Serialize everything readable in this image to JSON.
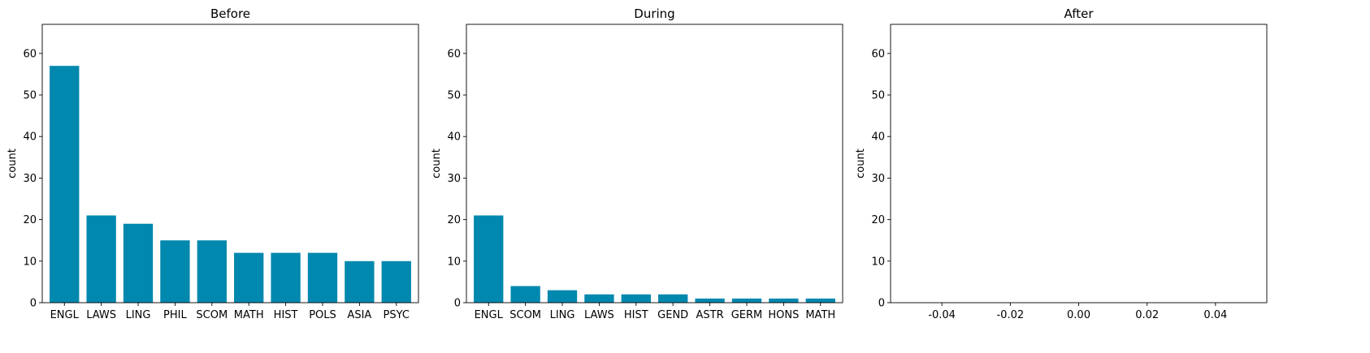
{
  "chart_data": [
    {
      "type": "bar",
      "title": "Before",
      "xlabel": "",
      "ylabel": "count",
      "ylim": [
        0,
        67
      ],
      "yticks": [
        0,
        10,
        20,
        30,
        40,
        50,
        60
      ],
      "color": "#0088AE",
      "categories": [
        "ENGL",
        "LAWS",
        "LING",
        "PHIL",
        "SCOM",
        "MATH",
        "HIST",
        "POLS",
        "ASIA",
        "PSYC"
      ],
      "values": [
        57,
        21,
        19,
        15,
        15,
        12,
        12,
        12,
        10,
        10
      ]
    },
    {
      "type": "bar",
      "title": "During",
      "xlabel": "",
      "ylabel": "count",
      "ylim": [
        0,
        67
      ],
      "yticks": [
        0,
        10,
        20,
        30,
        40,
        50,
        60
      ],
      "color": "#0088AE",
      "categories": [
        "ENGL",
        "SCOM",
        "LING",
        "LAWS",
        "HIST",
        "GEND",
        "ASTR",
        "GERM",
        "HONS",
        "MATH"
      ],
      "values": [
        21,
        4,
        3,
        2,
        2,
        2,
        1,
        1,
        1,
        1
      ]
    },
    {
      "type": "bar",
      "title": "After",
      "xlabel": "",
      "ylabel": "count",
      "ylim": [
        0,
        67
      ],
      "yticks": [
        0,
        10,
        20,
        30,
        40,
        50,
        60
      ],
      "color": "#0088AE",
      "categories": [],
      "values": [],
      "xlim": [
        -0.055,
        0.055
      ],
      "xticks": [
        "-0.04",
        "-0.02",
        "0.00",
        "0.02",
        "0.04"
      ],
      "xtick_values": [
        -0.04,
        -0.02,
        0,
        0.02,
        0.04
      ]
    }
  ]
}
